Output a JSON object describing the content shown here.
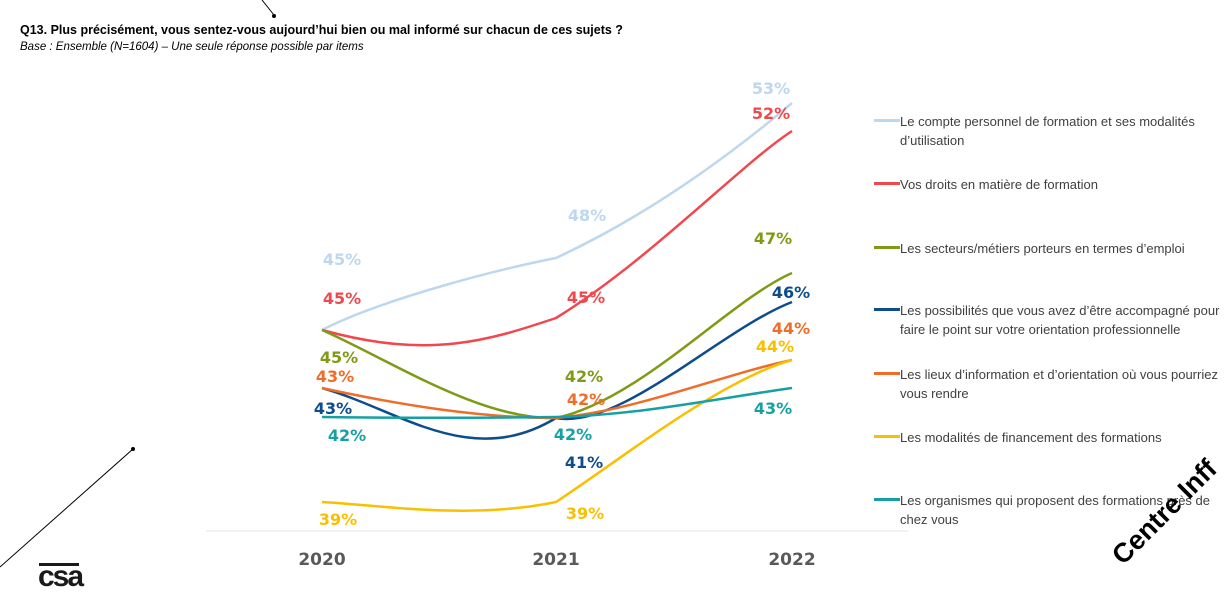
{
  "header": {
    "question": "Q13. Plus précisément, vous sentez-vous aujourd’hui bien ou mal informé sur chacun de ces sujets ?",
    "base": "Base : Ensemble (N=1604) – Une seule réponse possible par items"
  },
  "branding": {
    "logo": "csa",
    "watermark": "Centre Inff"
  },
  "chart_data": {
    "type": "line",
    "x": [
      "2020",
      "2021",
      "2022"
    ],
    "xlabel": "",
    "ylabel": "",
    "ylim": [
      37,
      55
    ],
    "grid": false,
    "legend_position": "right",
    "series": [
      {
        "name": "Le compte personnel de formation et ses modalités d’utilisation",
        "color": "#bdd7ee",
        "values": [
          45,
          48,
          53
        ],
        "labels": [
          "45%",
          "48%",
          "53%"
        ]
      },
      {
        "name": "Vos droits en matière de formation",
        "color": "#f0484e",
        "values": [
          45,
          45,
          52
        ],
        "labels": [
          "45%",
          "45%",
          "52%"
        ]
      },
      {
        "name": "Les secteurs/métiers porteurs en termes d’emploi",
        "color": "#7f9a14",
        "values": [
          45,
          42,
          47
        ],
        "labels": [
          "45%",
          "42%",
          "47%"
        ]
      },
      {
        "name": "Les possibilités que vous avez d’être accompagné pour faire le point sur votre orientation professionnelle",
        "color": "#0d4d8a",
        "values": [
          43,
          41,
          46
        ],
        "labels": [
          "43%",
          "41%",
          "46%"
        ]
      },
      {
        "name": "Les lieux d’information et d’orientation où vous pourriez vous rendre",
        "color": "#ee6d2a",
        "values": [
          43,
          42,
          44
        ],
        "labels": [
          "43%",
          "42%",
          "44%"
        ]
      },
      {
        "name": "Les modalités de financement des formations",
        "color": "#f8c000",
        "values": [
          39,
          39,
          44
        ],
        "labels": [
          "39%",
          "39%",
          "44%"
        ]
      },
      {
        "name": "Les organismes qui proposent des formations près de chez vous",
        "color": "#17a0a4",
        "values": [
          42,
          42,
          43
        ],
        "labels": [
          "42%",
          "42%",
          "43%"
        ]
      }
    ]
  }
}
